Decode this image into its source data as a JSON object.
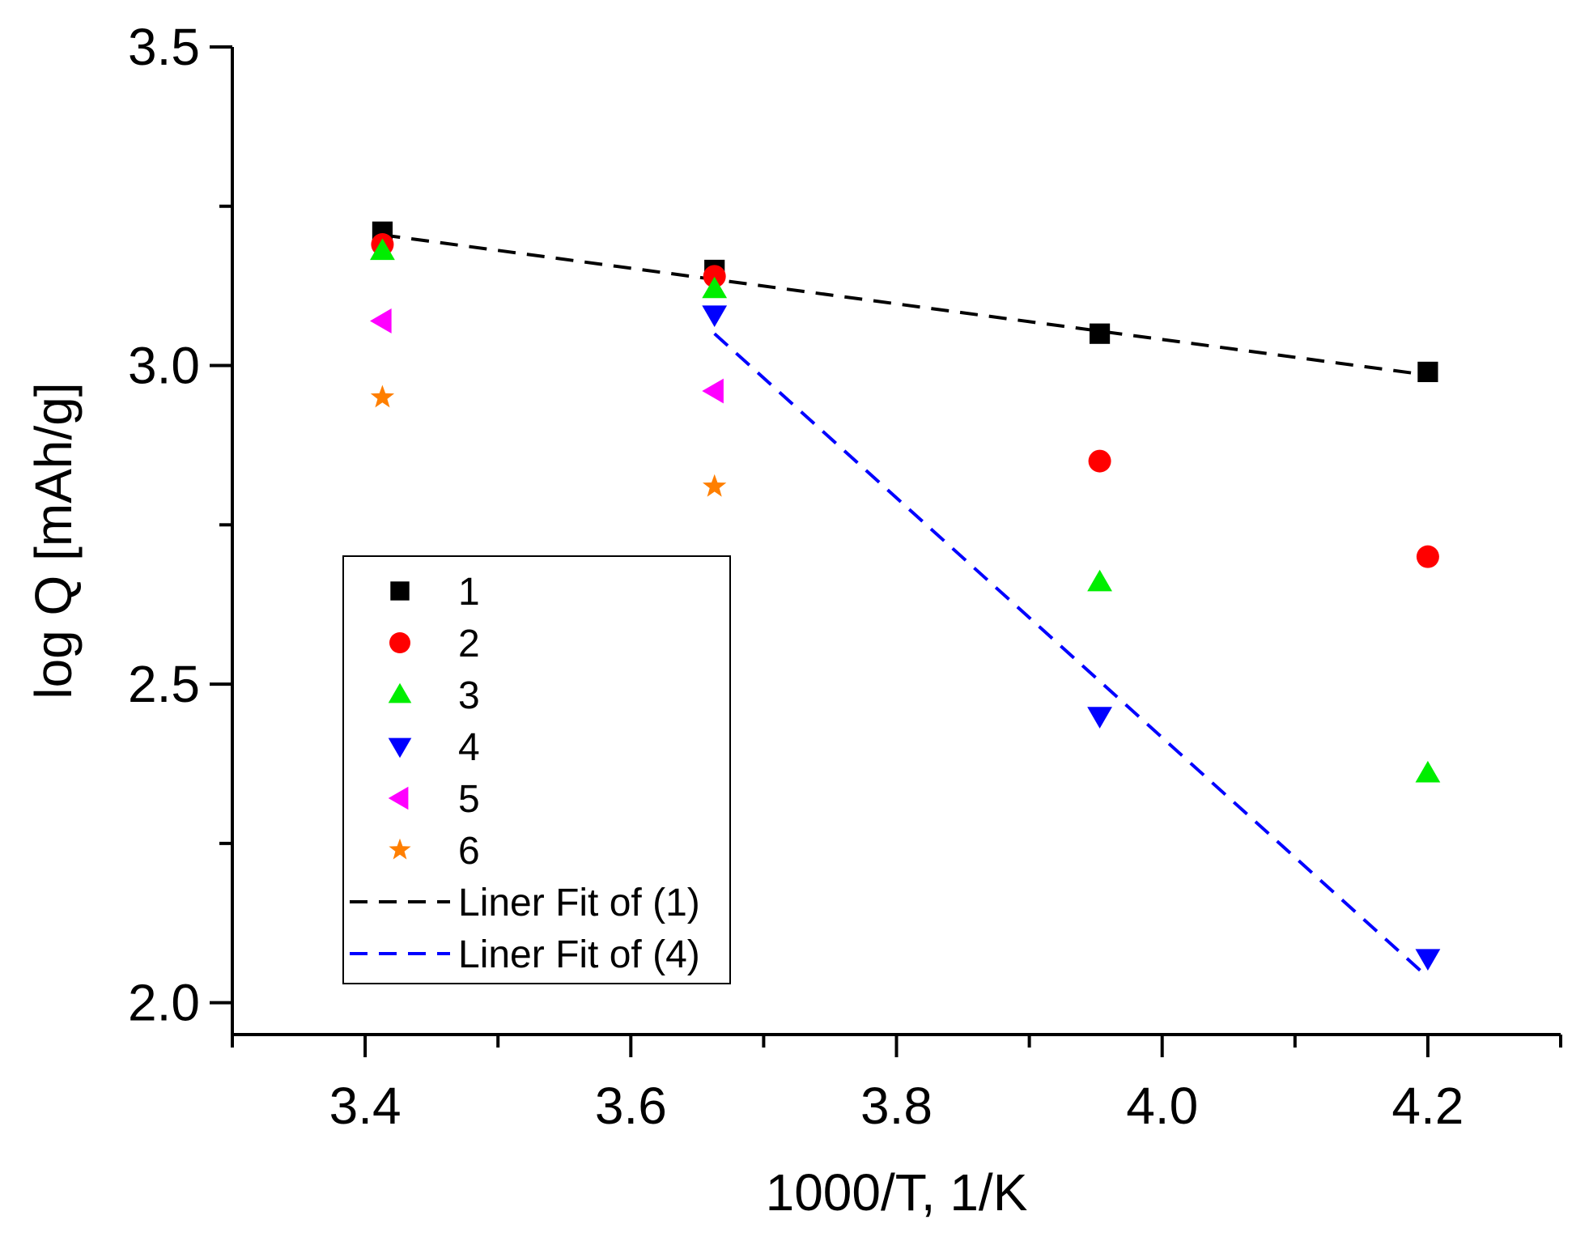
{
  "chart_data": {
    "type": "scatter",
    "title": "",
    "xlabel": "1000/T, 1/K",
    "ylabel": "log Q [mAh/g]",
    "xlim": [
      3.3,
      4.3
    ],
    "ylim": [
      1.95,
      3.5
    ],
    "x_ticks": [
      3.4,
      3.6,
      3.8,
      4.0,
      4.2
    ],
    "x_tick_labels": [
      "3.4",
      "3.6",
      "3.8",
      "4.0",
      "4.2"
    ],
    "y_ticks": [
      2.0,
      2.5,
      3.0,
      3.5
    ],
    "y_tick_labels": [
      "2.0",
      "2.5",
      "3.0",
      "3.5"
    ],
    "legend_position": "bottom-left",
    "series": [
      {
        "name": "1",
        "marker": "square",
        "color": "#000000",
        "x": [
          3.413,
          3.663,
          3.953,
          4.2
        ],
        "y": [
          3.21,
          3.15,
          3.05,
          2.99
        ]
      },
      {
        "name": "2",
        "marker": "circle",
        "color": "#ff0000",
        "x": [
          3.413,
          3.663,
          3.953,
          4.2
        ],
        "y": [
          3.19,
          3.14,
          2.85,
          2.7
        ]
      },
      {
        "name": "3",
        "marker": "triangle-up",
        "color": "#00ee00",
        "x": [
          3.413,
          3.663,
          3.953,
          4.2
        ],
        "y": [
          3.18,
          3.12,
          2.66,
          2.36
        ]
      },
      {
        "name": "4",
        "marker": "triangle-down",
        "color": "#0000ff",
        "x": [
          3.663,
          3.953,
          4.2
        ],
        "y": [
          3.08,
          2.45,
          2.07
        ]
      },
      {
        "name": "5",
        "marker": "triangle-left",
        "color": "#ff00ff",
        "x": [
          3.413,
          3.663
        ],
        "y": [
          3.07,
          2.96
        ]
      },
      {
        "name": "6",
        "marker": "star",
        "color": "#ff7f00",
        "x": [
          3.413,
          3.663
        ],
        "y": [
          2.95,
          2.81
        ]
      }
    ],
    "fits": [
      {
        "name": "Liner Fit of (1)",
        "color": "#000000",
        "x": [
          3.413,
          4.2
        ],
        "y": [
          3.205,
          2.985
        ]
      },
      {
        "name": "Liner Fit of (4)",
        "color": "#0000ff",
        "x": [
          3.663,
          4.2
        ],
        "y": [
          3.05,
          2.04
        ]
      }
    ]
  }
}
